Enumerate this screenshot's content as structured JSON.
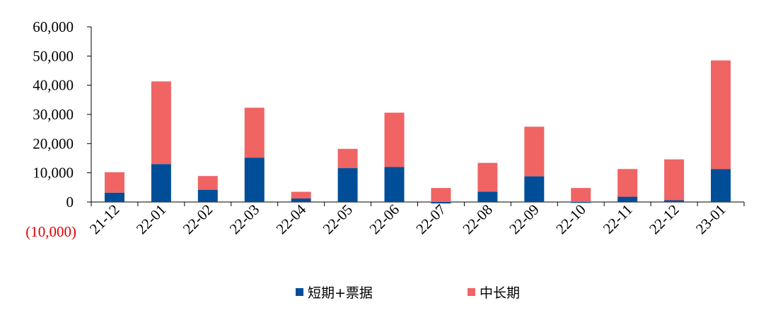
{
  "chart_data": {
    "type": "bar",
    "stacked": true,
    "title": "",
    "xlabel": "",
    "ylabel": "",
    "ylim": [
      -10000,
      60000
    ],
    "yticks": [
      -10000,
      0,
      10000,
      20000,
      30000,
      40000,
      50000,
      60000
    ],
    "ytick_labels": [
      "(10,000)",
      "0",
      "10,000",
      "20,000",
      "30,000",
      "40,000",
      "50,000",
      "60,000"
    ],
    "negative_tick_color": "#e00000",
    "grid": false,
    "legend_position": "bottom",
    "categories": [
      "21-12",
      "22-01",
      "22-02",
      "22-03",
      "22-04",
      "22-05",
      "22-06",
      "22-07",
      "22-08",
      "22-09",
      "22-10",
      "22-11",
      "22-12",
      "23-01"
    ],
    "series": [
      {
        "name": "短期+票据",
        "color": "#004e98",
        "values": [
          3200,
          13000,
          4200,
          15200,
          1200,
          11600,
          12000,
          -500,
          3500,
          8800,
          -300,
          1800,
          600,
          11300
        ]
      },
      {
        "name": "中长期",
        "color": "#f06464",
        "values": [
          7000,
          28300,
          4700,
          17100,
          2300,
          6600,
          18600,
          4800,
          9900,
          17000,
          4800,
          9500,
          14000,
          37200
        ]
      }
    ]
  }
}
